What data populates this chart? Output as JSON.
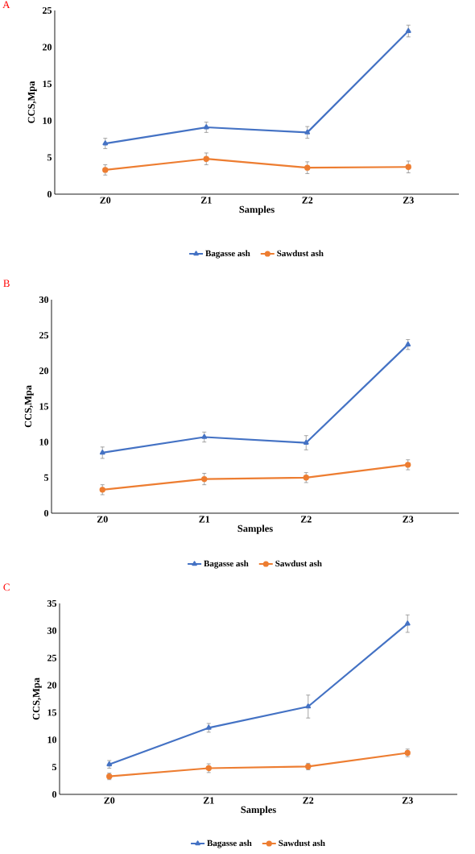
{
  "chart_data": [
    {
      "type": "line",
      "title": "A",
      "xlabel": "Samples",
      "ylabel": "CCS,Mpa",
      "categories": [
        "Z0",
        "Z1",
        "Z2",
        "Z3"
      ],
      "ylim": [
        0,
        25
      ],
      "yticks": [
        0,
        5,
        10,
        15,
        20,
        25
      ],
      "grid": false,
      "legend": "bottom",
      "series": [
        {
          "name": "Bagasse ash",
          "color": "#4472c4",
          "marker": "triangle",
          "values": [
            6.9,
            9.1,
            8.4,
            22.2
          ],
          "errors": [
            0.7,
            0.7,
            0.8,
            0.8
          ]
        },
        {
          "name": "Sawdust ash",
          "color": "#ed7d31",
          "marker": "circle",
          "values": [
            3.3,
            4.8,
            3.6,
            3.7
          ],
          "errors": [
            0.7,
            0.8,
            0.8,
            0.8
          ]
        }
      ]
    },
    {
      "type": "line",
      "title": "B",
      "xlabel": "Samples",
      "ylabel": "CCS,Mpa",
      "categories": [
        "Z0",
        "Z1",
        "Z2",
        "Z3"
      ],
      "ylim": [
        0,
        30
      ],
      "yticks": [
        0,
        5,
        10,
        15,
        20,
        25,
        30
      ],
      "grid": false,
      "legend": "bottom",
      "series": [
        {
          "name": "Bagasse ash",
          "color": "#4472c4",
          "marker": "triangle",
          "values": [
            8.5,
            10.7,
            9.9,
            23.7
          ],
          "errors": [
            0.8,
            0.7,
            1.0,
            0.7
          ]
        },
        {
          "name": "Sawdust ash",
          "color": "#ed7d31",
          "marker": "circle",
          "values": [
            3.3,
            4.8,
            5.0,
            6.8
          ],
          "errors": [
            0.7,
            0.8,
            0.7,
            0.7
          ]
        }
      ]
    },
    {
      "type": "line",
      "title": "C",
      "xlabel": "Samples",
      "ylabel": "CCS,Mpa",
      "categories": [
        "Z0",
        "Z1",
        "Z2",
        "Z3"
      ],
      "ylim": [
        0,
        35
      ],
      "yticks": [
        0,
        5,
        10,
        15,
        20,
        25,
        30,
        35
      ],
      "grid": false,
      "legend": "bottom",
      "series": [
        {
          "name": "Bagasse ash",
          "color": "#4472c4",
          "marker": "triangle",
          "values": [
            5.5,
            12.2,
            16.1,
            31.3
          ],
          "errors": [
            0.7,
            0.8,
            2.1,
            1.6
          ]
        },
        {
          "name": "Sawdust ash",
          "color": "#ed7d31",
          "marker": "circle",
          "values": [
            3.3,
            4.8,
            5.1,
            7.6
          ],
          "errors": [
            0.6,
            0.8,
            0.6,
            0.7
          ]
        }
      ]
    }
  ]
}
